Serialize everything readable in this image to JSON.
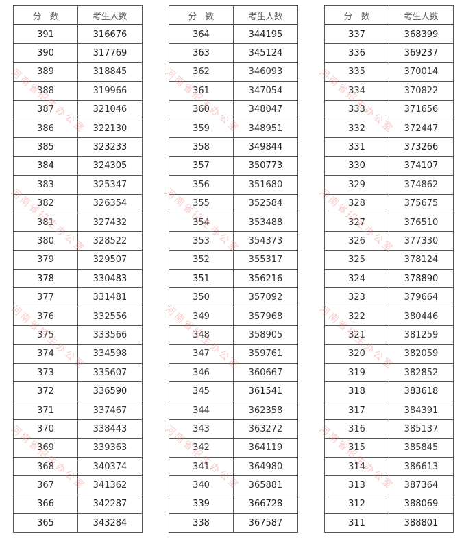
{
  "header": {
    "score": "分　数",
    "count": "考生人数"
  },
  "watermark": "河南省招生办公室",
  "tables": [
    {
      "rows": [
        [
          "391",
          "316676"
        ],
        [
          "390",
          "317769"
        ],
        [
          "389",
          "318845"
        ],
        [
          "388",
          "319966"
        ],
        [
          "387",
          "321046"
        ],
        [
          "386",
          "322130"
        ],
        [
          "385",
          "323233"
        ],
        [
          "384",
          "324305"
        ],
        [
          "383",
          "325347"
        ],
        [
          "382",
          "326354"
        ],
        [
          "381",
          "327432"
        ],
        [
          "380",
          "328522"
        ],
        [
          "379",
          "329507"
        ],
        [
          "378",
          "330483"
        ],
        [
          "377",
          "331481"
        ],
        [
          "376",
          "332556"
        ],
        [
          "375",
          "333566"
        ],
        [
          "374",
          "334598"
        ],
        [
          "373",
          "335607"
        ],
        [
          "372",
          "336590"
        ],
        [
          "371",
          "337467"
        ],
        [
          "370",
          "338443"
        ],
        [
          "369",
          "339363"
        ],
        [
          "368",
          "340374"
        ],
        [
          "367",
          "341362"
        ],
        [
          "366",
          "342287"
        ],
        [
          "365",
          "343284"
        ]
      ]
    },
    {
      "rows": [
        [
          "364",
          "344195"
        ],
        [
          "363",
          "345124"
        ],
        [
          "362",
          "346093"
        ],
        [
          "361",
          "347054"
        ],
        [
          "360",
          "348047"
        ],
        [
          "359",
          "348951"
        ],
        [
          "358",
          "349844"
        ],
        [
          "357",
          "350773"
        ],
        [
          "356",
          "351680"
        ],
        [
          "355",
          "352584"
        ],
        [
          "354",
          "353488"
        ],
        [
          "353",
          "354373"
        ],
        [
          "352",
          "355317"
        ],
        [
          "351",
          "356216"
        ],
        [
          "350",
          "357092"
        ],
        [
          "349",
          "357968"
        ],
        [
          "348",
          "358905"
        ],
        [
          "347",
          "359761"
        ],
        [
          "346",
          "360667"
        ],
        [
          "345",
          "361541"
        ],
        [
          "344",
          "362358"
        ],
        [
          "343",
          "363272"
        ],
        [
          "342",
          "364119"
        ],
        [
          "341",
          "364980"
        ],
        [
          "340",
          "365881"
        ],
        [
          "339",
          "366728"
        ],
        [
          "338",
          "367587"
        ]
      ]
    },
    {
      "rows": [
        [
          "337",
          "368399"
        ],
        [
          "336",
          "369237"
        ],
        [
          "335",
          "370014"
        ],
        [
          "334",
          "370822"
        ],
        [
          "333",
          "371656"
        ],
        [
          "332",
          "372447"
        ],
        [
          "331",
          "373266"
        ],
        [
          "330",
          "374107"
        ],
        [
          "329",
          "374862"
        ],
        [
          "328",
          "375675"
        ],
        [
          "327",
          "376510"
        ],
        [
          "326",
          "377330"
        ],
        [
          "325",
          "378124"
        ],
        [
          "324",
          "378890"
        ],
        [
          "323",
          "379664"
        ],
        [
          "322",
          "380446"
        ],
        [
          "321",
          "381259"
        ],
        [
          "320",
          "382059"
        ],
        [
          "319",
          "382852"
        ],
        [
          "318",
          "383618"
        ],
        [
          "317",
          "384391"
        ],
        [
          "316",
          "385137"
        ],
        [
          "315",
          "385845"
        ],
        [
          "314",
          "386613"
        ],
        [
          "313",
          "387364"
        ],
        [
          "312",
          "388069"
        ],
        [
          "311",
          "388801"
        ]
      ]
    }
  ]
}
